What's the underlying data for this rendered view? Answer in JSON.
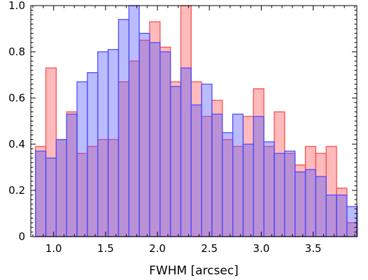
{
  "chart_data": {
    "type": "bar",
    "xlabel": "FWHM [arcsec]",
    "ylabel": "",
    "xlim": [
      0.78,
      3.92
    ],
    "ylim": [
      0.0,
      1.0
    ],
    "xticks": [
      "1.0",
      "1.5",
      "2.0",
      "2.5",
      "3.0",
      "3.5"
    ],
    "xtick_values": [
      1.0,
      1.5,
      2.0,
      2.5,
      3.0,
      3.5
    ],
    "yticks": [
      "0",
      "0.2",
      "0.4",
      "0.6",
      "0.8",
      "1.0"
    ],
    "ytick_values": [
      0.0,
      0.2,
      0.4,
      0.6,
      0.8,
      1.0
    ],
    "bin_start": 0.825,
    "bin_width": 0.1,
    "series": [
      {
        "color": "#ff4d4d",
        "values": [
          0.39,
          0.73,
          0.42,
          0.54,
          0.36,
          0.39,
          0.42,
          0.42,
          0.67,
          0.76,
          0.85,
          0.93,
          0.82,
          0.67,
          1.0,
          0.67,
          0.52,
          0.59,
          0.42,
          0.39,
          0.52,
          0.64,
          0.39,
          0.54,
          0.36,
          0.31,
          0.39,
          0.36,
          0.39,
          0.21,
          0.06
        ]
      },
      {
        "color": "#4d4dff",
        "values": [
          0.37,
          0.34,
          0.42,
          0.53,
          0.67,
          0.71,
          0.8,
          0.81,
          0.94,
          1.0,
          0.88,
          0.84,
          0.8,
          0.65,
          0.73,
          0.57,
          0.66,
          0.53,
          0.45,
          0.53,
          0.4,
          0.52,
          0.41,
          0.36,
          0.37,
          0.28,
          0.29,
          0.26,
          0.18,
          0.18,
          0.13
        ]
      }
    ]
  }
}
